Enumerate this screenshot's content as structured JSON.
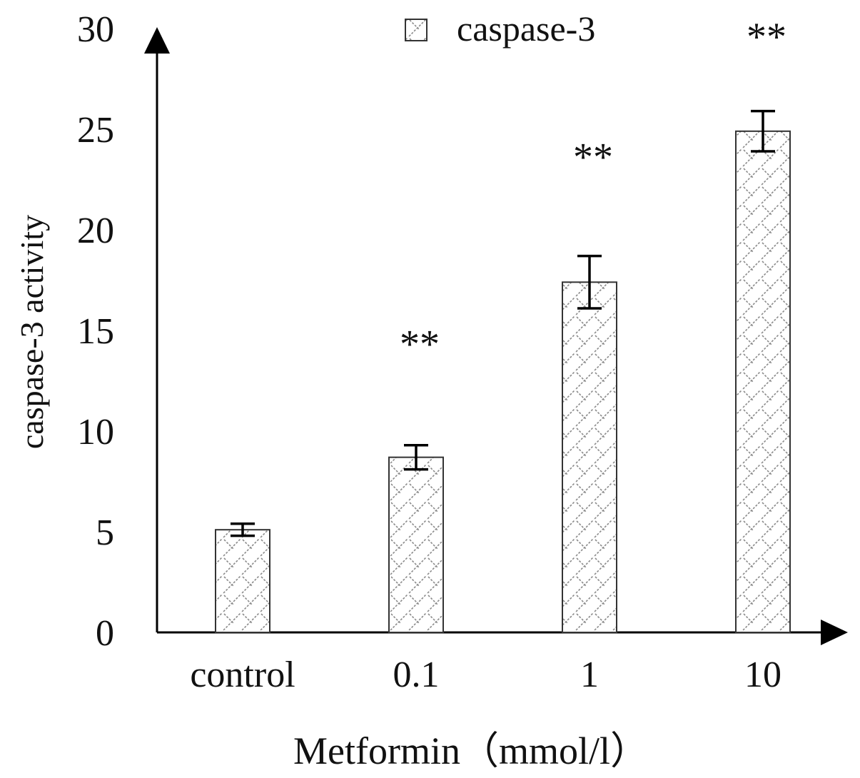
{
  "chart_data": {
    "type": "bar",
    "categories": [
      "control",
      "0.1",
      "1",
      "10"
    ],
    "series": [
      {
        "name": "caspase-3",
        "values": [
          5.1,
          8.7,
          17.4,
          24.9
        ],
        "errors": [
          0.3,
          0.6,
          1.3,
          1.0
        ],
        "annotations": [
          "",
          "**",
          "**",
          "**"
        ]
      }
    ],
    "title": "",
    "xlabel": "Metformin（mmol/l）",
    "ylabel": "caspase-3 activity",
    "ylim": [
      0,
      30
    ],
    "yticks": [
      "0",
      "5",
      "10",
      "15",
      "20",
      "25",
      "30"
    ],
    "grid": false,
    "legend_position": "top-center",
    "colors": {
      "bar_fill_pattern": "hatched",
      "bar_stroke": "#333333",
      "hatch": "#8a8a8a",
      "axis": "#000000",
      "text": "#111111"
    }
  }
}
